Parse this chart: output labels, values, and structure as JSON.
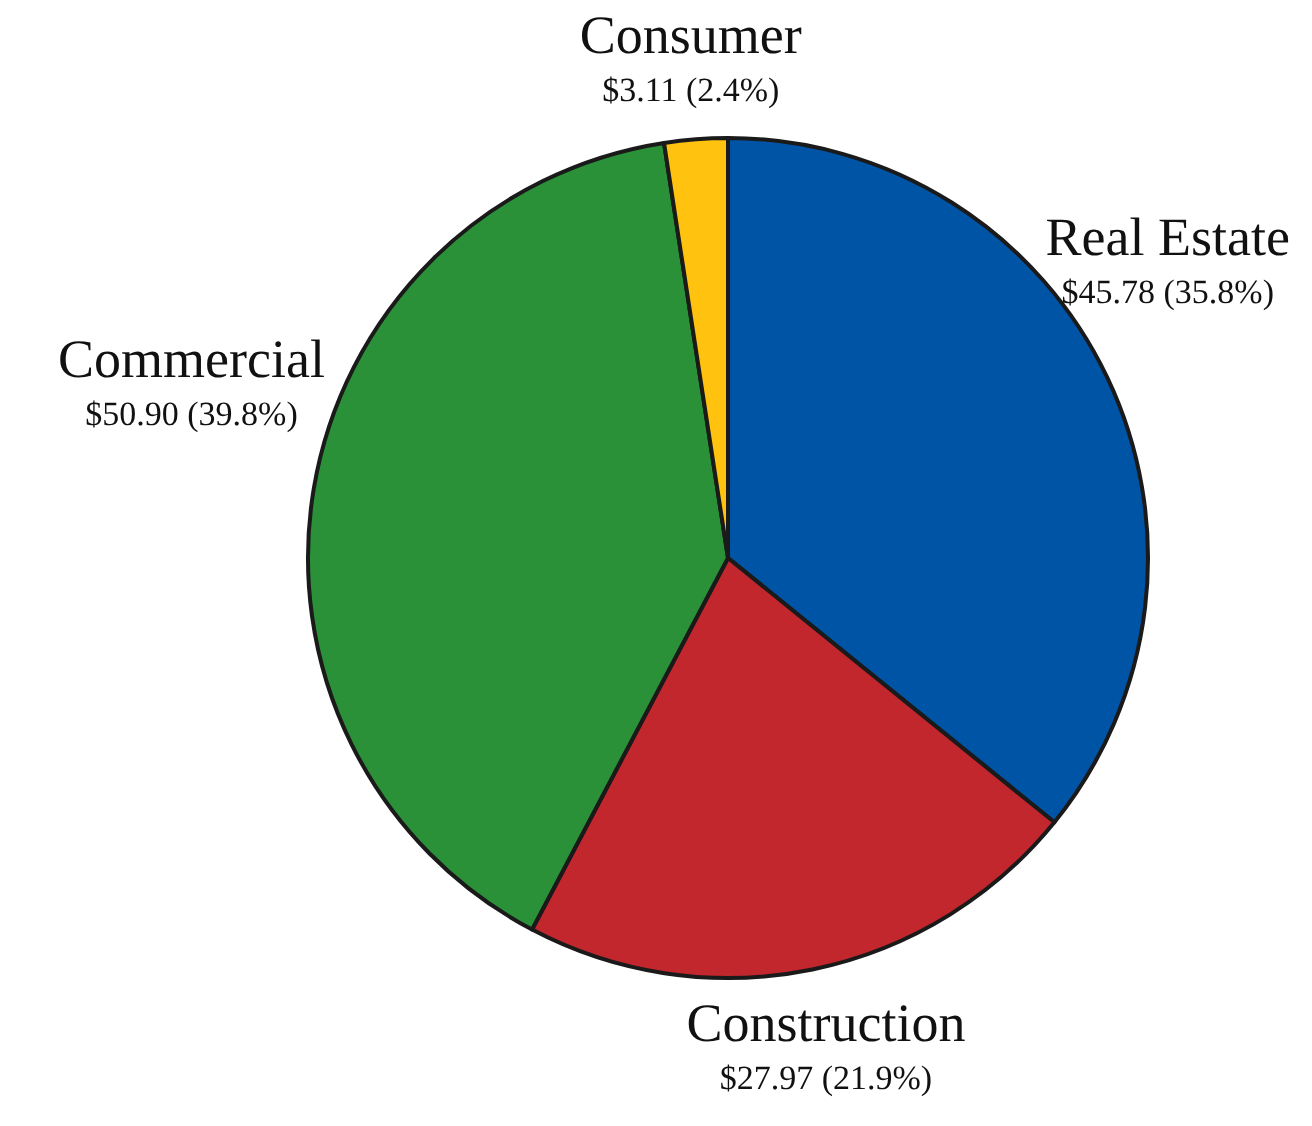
{
  "chart_data": {
    "type": "pie",
    "categories": [
      "Real Estate",
      "Construction",
      "Commercial",
      "Consumer"
    ],
    "values": [
      45.78,
      27.97,
      50.9,
      3.11
    ],
    "value_labels": [
      "$45.78 (35.8%)",
      "$27.97 (21.9%)",
      "$50.90 (39.8%)",
      "$3.11 (2.4%)"
    ],
    "colors": [
      "#0054a6",
      "#c1272d",
      "#2a9138",
      "#ffc20e"
    ]
  }
}
